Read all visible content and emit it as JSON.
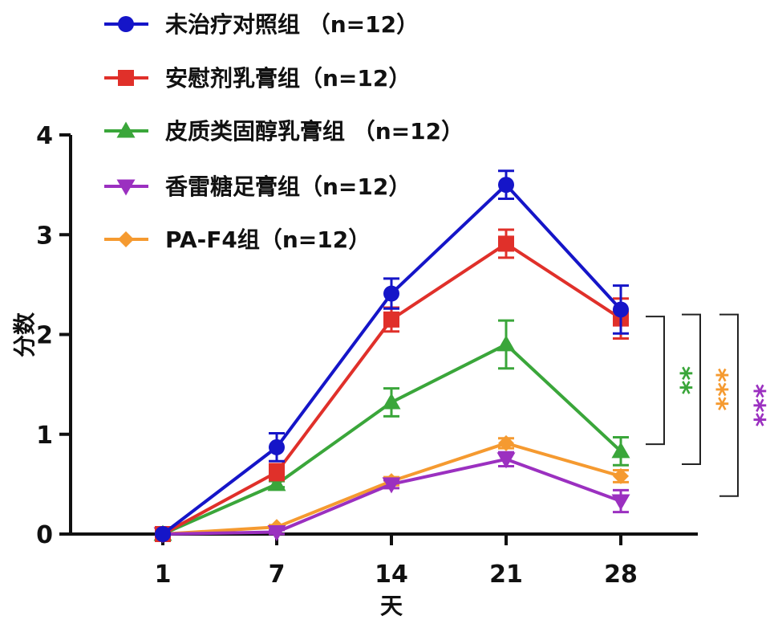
{
  "chart_data": {
    "type": "line",
    "x": [
      "1",
      "7",
      "14",
      "21",
      "28"
    ],
    "xlabel": "天",
    "ylabel": "分数",
    "ylim": [
      0,
      4
    ],
    "yticks": [
      "0",
      "1",
      "2",
      "3",
      "4"
    ],
    "series": [
      {
        "name": "未治疗对照组 （n=12）",
        "color": "#1515c8",
        "marker": "circle",
        "values": [
          0,
          0.87,
          2.41,
          3.5,
          2.25
        ],
        "errors": [
          0,
          0.14,
          0.15,
          0.14,
          0.24
        ]
      },
      {
        "name": "安慰剂乳膏组（n=12）",
        "color": "#e0302a",
        "marker": "square",
        "values": [
          0,
          0.62,
          2.15,
          2.91,
          2.16
        ],
        "errors": [
          0,
          0.08,
          0.12,
          0.14,
          0.2
        ]
      },
      {
        "name": "皮质类固醇乳膏组 （n=12）",
        "color": "#3aa63a",
        "marker": "triangle-up",
        "values": [
          0,
          0.5,
          1.32,
          1.9,
          0.83
        ],
        "errors": [
          0,
          0.03,
          0.14,
          0.24,
          0.14
        ]
      },
      {
        "name": "香雷糖足膏组（n=12）",
        "color": "#9b30c0",
        "marker": "triangle-down",
        "values": [
          0,
          0.02,
          0.5,
          0.75,
          0.33
        ],
        "errors": [
          0,
          0.02,
          0.04,
          0.07,
          0.11
        ]
      },
      {
        "name": "PA-F4组（n=12）",
        "color": "#f59a30",
        "marker": "diamond",
        "values": [
          0,
          0.07,
          0.53,
          0.91,
          0.58
        ],
        "errors": [
          0,
          0.02,
          0.04,
          0.05,
          0.06
        ]
      }
    ],
    "significance": [
      {
        "label": "**",
        "color": "#3aa63a",
        "y_top": 2.18,
        "y_bottom": 0.9
      },
      {
        "label": "***",
        "color": "#f59a30",
        "y_top": 2.2,
        "y_bottom": 0.7
      },
      {
        "label": "***",
        "color": "#9b30c0",
        "y_top": 2.2,
        "y_bottom": 0.38
      }
    ],
    "legend_position": "top-left",
    "grid": false
  }
}
